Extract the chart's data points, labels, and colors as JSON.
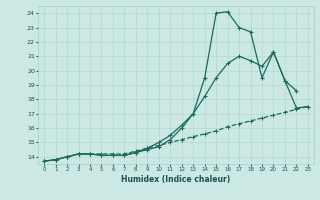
{
  "xlabel": "Humidex (Indice chaleur)",
  "bg_color": "#cce8e4",
  "grid_color": "#b0d8d0",
  "line_color": "#1a6b5a",
  "xlim": [
    -0.5,
    23.5
  ],
  "ylim": [
    13.5,
    24.5
  ],
  "xticks": [
    0,
    1,
    2,
    3,
    4,
    5,
    6,
    7,
    8,
    9,
    10,
    11,
    12,
    13,
    14,
    15,
    16,
    17,
    18,
    19,
    20,
    21,
    22,
    23
  ],
  "yticks": [
    14,
    15,
    16,
    17,
    18,
    19,
    20,
    21,
    22,
    23,
    24
  ],
  "series1_x": [
    0,
    1,
    2,
    3,
    4,
    5,
    6,
    7,
    8,
    9,
    10,
    11,
    12,
    13,
    14,
    15,
    16,
    17,
    18,
    19,
    20,
    21,
    22,
    23
  ],
  "series1_y": [
    13.7,
    13.8,
    14.0,
    14.2,
    14.2,
    14.1,
    14.1,
    14.1,
    14.3,
    14.5,
    14.7,
    15.2,
    16.0,
    17.0,
    19.5,
    24.0,
    24.1,
    23.0,
    22.7,
    19.5,
    21.3,
    19.3,
    18.6,
    null
  ],
  "series2_x": [
    0,
    1,
    2,
    3,
    4,
    5,
    6,
    7,
    8,
    9,
    10,
    11,
    12,
    13,
    14,
    15,
    16,
    17,
    18,
    19,
    20,
    21,
    22,
    23
  ],
  "series2_y": [
    13.7,
    13.8,
    14.0,
    14.2,
    14.2,
    14.1,
    14.1,
    14.1,
    14.3,
    14.6,
    15.0,
    15.5,
    16.2,
    17.0,
    18.2,
    19.5,
    20.5,
    21.0,
    20.7,
    20.3,
    21.3,
    19.3,
    17.4,
    17.5
  ],
  "series3_x": [
    0,
    1,
    2,
    3,
    4,
    5,
    6,
    7,
    8,
    9,
    10,
    11,
    12,
    13,
    14,
    15,
    16,
    17,
    18,
    19,
    20,
    21,
    22,
    23
  ],
  "series3_y": [
    13.7,
    13.8,
    14.0,
    14.2,
    14.2,
    14.2,
    14.2,
    14.2,
    14.4,
    14.6,
    14.8,
    15.0,
    15.2,
    15.4,
    15.6,
    15.8,
    16.1,
    16.3,
    16.5,
    16.7,
    16.9,
    17.1,
    17.3,
    17.5
  ]
}
